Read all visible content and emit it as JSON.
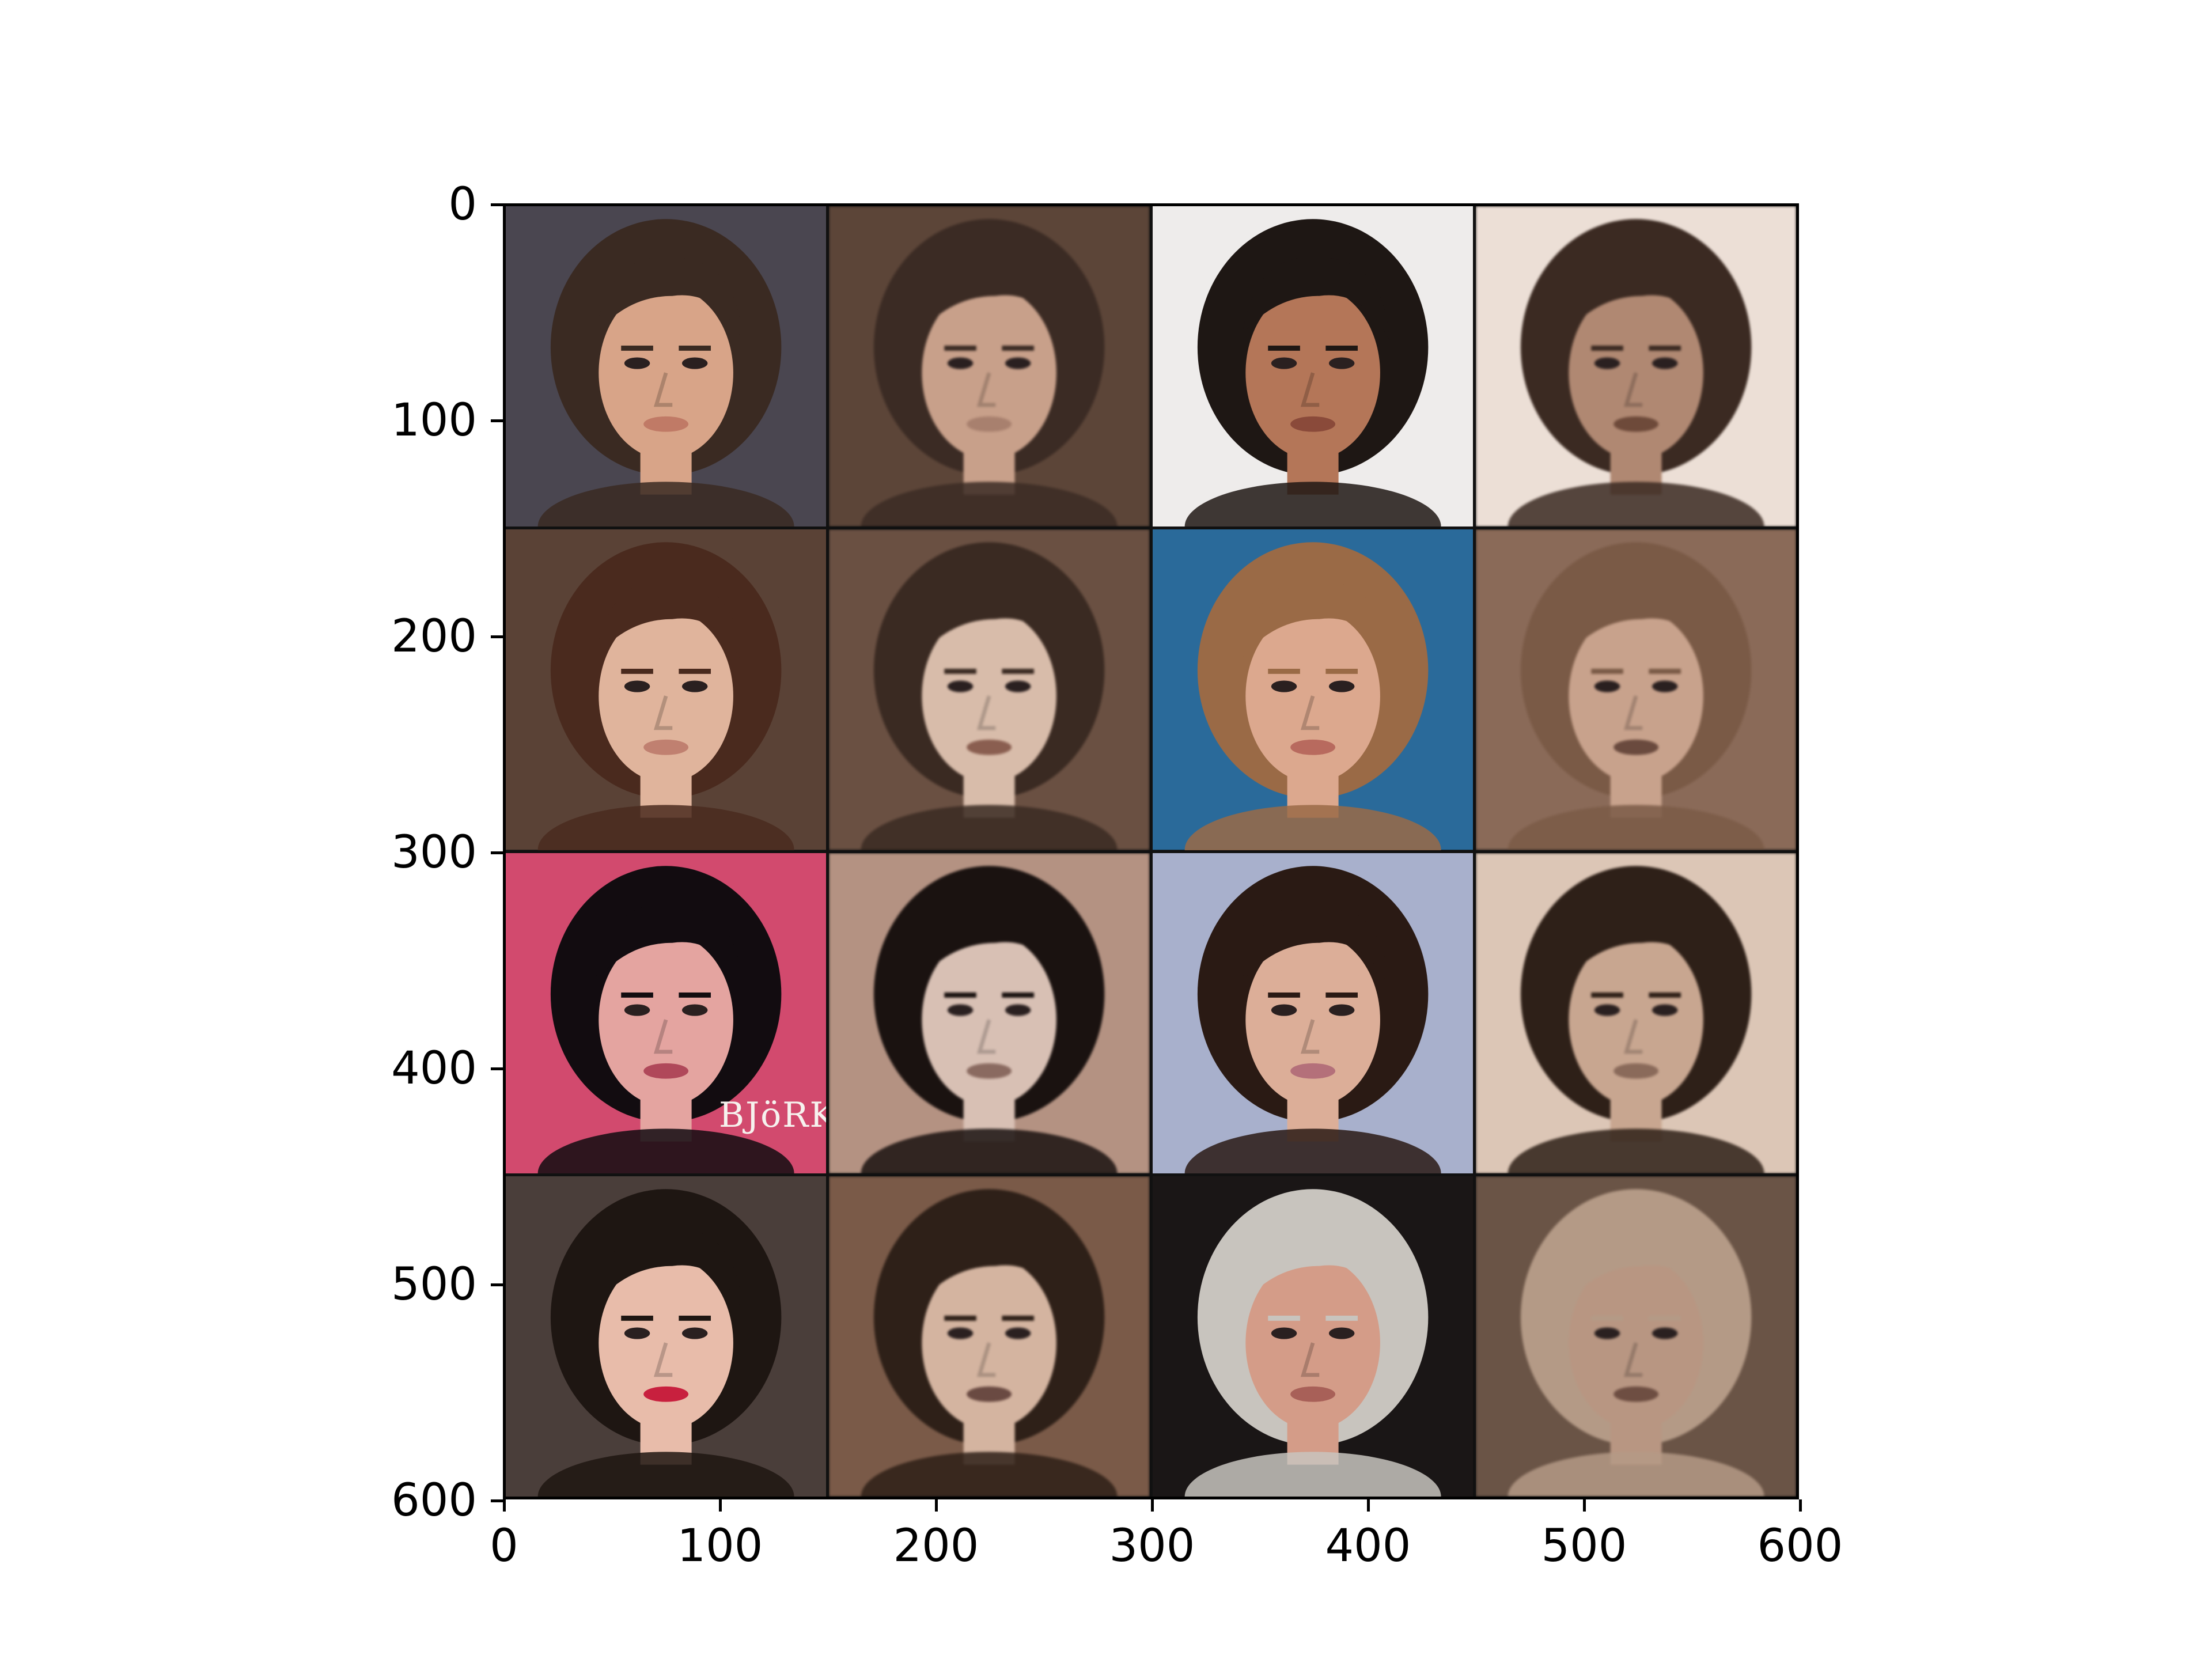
{
  "axes": {
    "x_ticks": [
      "0",
      "100",
      "200",
      "300",
      "400",
      "500",
      "600"
    ],
    "y_ticks": [
      "0",
      "100",
      "200",
      "300",
      "400",
      "500",
      "600"
    ]
  },
  "grid": {
    "rows": 4,
    "columns": 4,
    "layout": "original-photo / cartoonized-version pairs"
  },
  "tiles": [
    {
      "name": "woman-curly-brown-hair",
      "style": "photo",
      "bg": "#4a4650",
      "hair": "#3a2a22",
      "skin": "#d8a488",
      "lips": "#c07a66"
    },
    {
      "name": "woman-curly-brown-hair",
      "style": "cartoon",
      "bg": "#5c4538",
      "hair": "#3b2b24",
      "skin": "#c8a08a",
      "lips": "#a8806e"
    },
    {
      "name": "man-dark-wavy-hair-beard",
      "style": "photo",
      "bg": "#eeeceb",
      "hair": "#1e1714",
      "skin": "#b47658",
      "lips": "#8a4a3a"
    },
    {
      "name": "man-dark-wavy-hair-beard",
      "style": "cartoon",
      "bg": "#ecdfd6",
      "hair": "#3b2a22",
      "skin": "#b08872",
      "lips": "#6e4a3a"
    },
    {
      "name": "woman-auburn-hair",
      "style": "photo",
      "bg": "#5a4236",
      "hair": "#4a2a1e",
      "skin": "#e0b49c",
      "lips": "#c08070"
    },
    {
      "name": "woman-auburn-hair",
      "style": "cartoon",
      "bg": "#6a5042",
      "hair": "#3a2a22",
      "skin": "#d8bcaa",
      "lips": "#8a5e50"
    },
    {
      "name": "man-short-hair-smiling",
      "style": "photo",
      "bg": "#2a6a9a",
      "hair": "#9a6a46",
      "skin": "#dca88e",
      "lips": "#b86a5e"
    },
    {
      "name": "man-short-hair-smiling",
      "style": "cartoon",
      "bg": "#8a6a58",
      "hair": "#7a5a46",
      "skin": "#c8a28c",
      "lips": "#6a4a3e"
    },
    {
      "name": "woman-black-hair-pink-bg",
      "style": "photo",
      "bg": "#d24a6e",
      "hair": "#120c10",
      "skin": "#e4a4a0",
      "lips": "#b0485a",
      "watermark": "BJöRK"
    },
    {
      "name": "woman-black-hair-pink-bg",
      "style": "cartoon",
      "bg": "#b49282",
      "hair": "#1a1210",
      "skin": "#d8c0b4",
      "lips": "#8a6a60"
    },
    {
      "name": "woman-short-dark-bob",
      "style": "photo",
      "bg": "#a8b0cc",
      "hair": "#2a1a14",
      "skin": "#dcae98",
      "lips": "#b4707a"
    },
    {
      "name": "woman-short-dark-bob",
      "style": "cartoon",
      "bg": "#dcc6b6",
      "hair": "#2e2018",
      "skin": "#c8a690",
      "lips": "#8a6a5a"
    },
    {
      "name": "woman-sleek-hair-red-lips",
      "style": "photo",
      "bg": "#4a3e3a",
      "hair": "#1e1612",
      "skin": "#e8bcaa",
      "lips": "#c8203e"
    },
    {
      "name": "woman-sleek-hair-red-lips",
      "style": "cartoon",
      "bg": "#7a5a48",
      "hair": "#2e2018",
      "skin": "#d4b4a0",
      "lips": "#6a4a42"
    },
    {
      "name": "older-man-grey-hair",
      "style": "photo",
      "bg": "#1a1616",
      "hair": "#c8c4be",
      "skin": "#d49c88",
      "lips": "#a86058"
    },
    {
      "name": "older-man-grey-hair",
      "style": "cartoon",
      "bg": "#6a5446",
      "hair": "#b49a86",
      "skin": "#b89682",
      "lips": "#6e4e42"
    }
  ]
}
